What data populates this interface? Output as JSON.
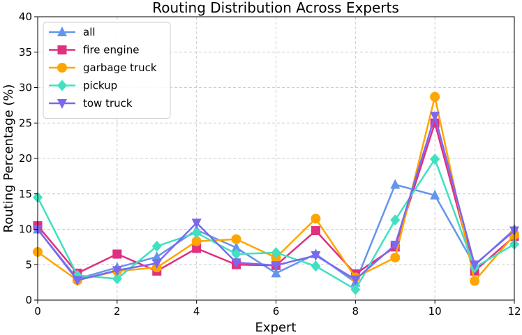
{
  "chart_data": {
    "type": "line",
    "title": "Routing Distribution Across Experts",
    "xlabel": "Expert",
    "ylabel": "Routing Percentage (%)",
    "xlim": [
      0,
      12
    ],
    "ylim": [
      0,
      40
    ],
    "xticks": [
      0,
      2,
      4,
      6,
      8,
      10,
      12
    ],
    "yticks": [
      0,
      5,
      10,
      15,
      20,
      25,
      30,
      35,
      40
    ],
    "grid": true,
    "legend_position": "top-left",
    "x": [
      0,
      1,
      2,
      3,
      4,
      5,
      6,
      7,
      8,
      9,
      10,
      11,
      12
    ],
    "series": [
      {
        "name": "all",
        "color": "#6495ED",
        "marker": "triangle-up",
        "values": [
          10.0,
          3.0,
          4.6,
          6.1,
          9.9,
          7.4,
          3.8,
          6.5,
          2.5,
          16.3,
          14.8,
          4.9,
          10.0
        ]
      },
      {
        "name": "fire engine",
        "color": "#E0307F",
        "marker": "square",
        "values": [
          10.5,
          3.8,
          6.5,
          4.1,
          7.3,
          5.0,
          4.9,
          9.8,
          3.7,
          7.5,
          25.0,
          4.1,
          9.0
        ]
      },
      {
        "name": "garbage truck",
        "color": "#FFA500",
        "marker": "circle",
        "values": [
          6.8,
          2.8,
          4.1,
          4.6,
          8.3,
          8.6,
          6.0,
          11.5,
          3.2,
          6.0,
          28.7,
          2.7,
          9.2
        ]
      },
      {
        "name": "pickup",
        "color": "#40E0C0",
        "marker": "diamond",
        "values": [
          14.5,
          3.5,
          3.0,
          7.6,
          9.5,
          6.5,
          6.7,
          4.8,
          1.5,
          11.3,
          19.9,
          4.6,
          7.9
        ]
      },
      {
        "name": "tow truck",
        "color": "#7B68EE",
        "marker": "triangle-down",
        "values": [
          10.0,
          2.8,
          4.2,
          5.2,
          10.9,
          5.3,
          4.9,
          6.3,
          2.9,
          7.8,
          26.0,
          5.0,
          9.8
        ]
      }
    ]
  }
}
